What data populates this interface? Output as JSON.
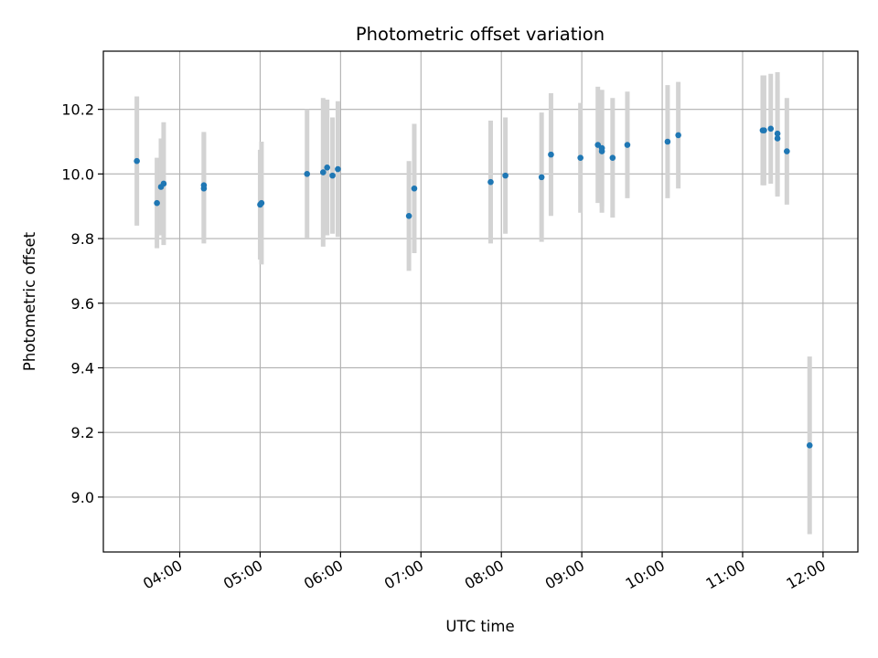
{
  "chart_data": {
    "type": "scatter",
    "title": "Photometric offset variation",
    "xlabel": "UTC time",
    "ylabel": "Photometric offset",
    "grid": true,
    "x_tick_labels": [
      "04:00",
      "05:00",
      "06:00",
      "07:00",
      "08:00",
      "09:00",
      "10:00",
      "11:00",
      "12:00"
    ],
    "y_tick_labels": [
      "9.0",
      "9.2",
      "9.4",
      "9.6",
      "9.8",
      "10.0",
      "10.2"
    ],
    "y_ticks": [
      9.0,
      9.2,
      9.4,
      9.6,
      9.8,
      10.0,
      10.2
    ],
    "xlim": [
      "03:03",
      "12:26"
    ],
    "ylim": [
      8.83,
      10.38
    ],
    "colors": {
      "points": "#1f77b4",
      "errorbars": "#d3d3d3",
      "grid": "#b0b0b0"
    },
    "series": [
      {
        "points": [
          {
            "t": "03:28",
            "y": 10.04,
            "err": 0.2
          },
          {
            "t": "03:43",
            "y": 9.91,
            "err": 0.14
          },
          {
            "t": "03:46",
            "y": 9.96,
            "err": 0.15
          },
          {
            "t": "03:48",
            "y": 9.97,
            "err": 0.19
          },
          {
            "t": "04:18",
            "y": 9.965,
            "err": 0.165
          },
          {
            "t": "04:18",
            "y": 9.955,
            "err": 0.17
          },
          {
            "t": "05:00",
            "y": 9.905,
            "err": 0.17
          },
          {
            "t": "05:01",
            "y": 9.91,
            "err": 0.19
          },
          {
            "t": "05:35",
            "y": 10.0,
            "err": 0.2
          },
          {
            "t": "05:47",
            "y": 10.005,
            "err": 0.23
          },
          {
            "t": "05:50",
            "y": 10.02,
            "err": 0.21
          },
          {
            "t": "05:54",
            "y": 9.995,
            "err": 0.18
          },
          {
            "t": "05:58",
            "y": 10.015,
            "err": 0.21
          },
          {
            "t": "06:51",
            "y": 9.87,
            "err": 0.17
          },
          {
            "t": "06:55",
            "y": 9.955,
            "err": 0.2
          },
          {
            "t": "07:52",
            "y": 9.975,
            "err": 0.19
          },
          {
            "t": "08:03",
            "y": 9.995,
            "err": 0.18
          },
          {
            "t": "08:30",
            "y": 9.99,
            "err": 0.2
          },
          {
            "t": "08:37",
            "y": 10.06,
            "err": 0.19
          },
          {
            "t": "08:59",
            "y": 10.05,
            "err": 0.17
          },
          {
            "t": "09:12",
            "y": 10.09,
            "err": 0.18
          },
          {
            "t": "09:15",
            "y": 10.07,
            "err": 0.19
          },
          {
            "t": "09:15",
            "y": 10.08,
            "err": 0.18
          },
          {
            "t": "09:23",
            "y": 10.05,
            "err": 0.185
          },
          {
            "t": "09:34",
            "y": 10.09,
            "err": 0.165
          },
          {
            "t": "10:04",
            "y": 10.1,
            "err": 0.175
          },
          {
            "t": "10:12",
            "y": 10.12,
            "err": 0.165
          },
          {
            "t": "11:15",
            "y": 10.135,
            "err": 0.17
          },
          {
            "t": "11:16",
            "y": 10.135,
            "err": 0.17
          },
          {
            "t": "11:21",
            "y": 10.14,
            "err": 0.17
          },
          {
            "t": "11:26",
            "y": 10.125,
            "err": 0.19
          },
          {
            "t": "11:26",
            "y": 10.11,
            "err": 0.18
          },
          {
            "t": "11:33",
            "y": 10.07,
            "err": 0.165
          },
          {
            "t": "11:50",
            "y": 9.16,
            "err": 0.275
          }
        ]
      }
    ]
  }
}
